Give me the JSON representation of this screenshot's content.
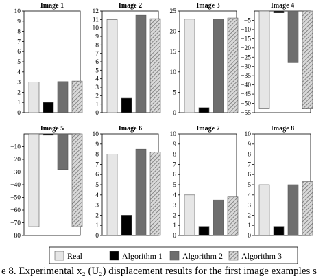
{
  "chart_data": [
    {
      "type": "bar",
      "title": "Image 1",
      "categories": [
        "Real",
        "Algorithm 1",
        "Algorithm 2",
        "Algorithm 3"
      ],
      "values": [
        3,
        1,
        3.05,
        3.1
      ],
      "ylim": [
        0,
        10
      ],
      "ticks": [
        0,
        1,
        2,
        3,
        4,
        5,
        6,
        7,
        8,
        9,
        10
      ]
    },
    {
      "type": "bar",
      "title": "Image 2",
      "categories": [
        "Real",
        "Algorithm 1",
        "Algorithm 2",
        "Algorithm 3"
      ],
      "values": [
        11,
        1.7,
        11.5,
        11.1
      ],
      "ylim": [
        0,
        12
      ],
      "ticks": [
        0,
        1,
        2,
        3,
        4,
        5,
        6,
        7,
        8,
        9,
        10,
        11,
        12
      ]
    },
    {
      "type": "bar",
      "title": "Image 3",
      "categories": [
        "Real",
        "Algorithm 1",
        "Algorithm 2",
        "Algorithm 3"
      ],
      "values": [
        23,
        1.2,
        23,
        23.3
      ],
      "ylim": [
        0,
        25
      ],
      "ticks": [
        0,
        5,
        10,
        15,
        20,
        25
      ]
    },
    {
      "type": "bar",
      "title": "Image 4",
      "categories": [
        "Real",
        "Algorithm 1",
        "Algorithm 2",
        "Algorithm 3"
      ],
      "values": [
        -53,
        -1,
        -28,
        -53
      ],
      "ylim": [
        -55,
        0
      ],
      "ticks": [
        -5,
        -10,
        -15,
        -20,
        -25,
        -30,
        -35,
        -40,
        -45,
        -50,
        -55
      ]
    },
    {
      "type": "bar",
      "title": "Image 5",
      "categories": [
        "Real",
        "Algorithm 1",
        "Algorithm 2",
        "Algorithm 3"
      ],
      "values": [
        -73,
        -1,
        -28,
        -73
      ],
      "ylim": [
        -80,
        0
      ],
      "ticks": [
        -10,
        -20,
        -30,
        -40,
        -50,
        -60,
        -70,
        -80
      ]
    },
    {
      "type": "bar",
      "title": "Image 6",
      "categories": [
        "Real",
        "Algorithm 1",
        "Algorithm 2",
        "Algorithm 3"
      ],
      "values": [
        8,
        2,
        8.5,
        8.2
      ],
      "ylim": [
        0,
        10
      ],
      "ticks": [
        0,
        1,
        2,
        3,
        4,
        5,
        6,
        7,
        8,
        9,
        10
      ]
    },
    {
      "type": "bar",
      "title": "Image 7",
      "categories": [
        "Real",
        "Algorithm 1",
        "Algorithm 2",
        "Algorithm 3"
      ],
      "values": [
        4,
        0.9,
        3.5,
        3.8
      ],
      "ylim": [
        0,
        10
      ],
      "ticks": [
        0,
        1,
        2,
        3,
        4,
        5,
        6,
        7,
        8,
        9,
        10
      ]
    },
    {
      "type": "bar",
      "title": "Image 8",
      "categories": [
        "Real",
        "Algorithm 1",
        "Algorithm 2",
        "Algorithm 3"
      ],
      "values": [
        5,
        0.9,
        5,
        5.3
      ],
      "ylim": [
        0,
        10
      ],
      "ticks": [
        0,
        1,
        2,
        3,
        4,
        5,
        6,
        7,
        8,
        9,
        10
      ]
    }
  ],
  "legend": [
    {
      "label": "Real",
      "color": "#e6e6e6",
      "pattern": "solid"
    },
    {
      "label": "Algorithm 1",
      "color": "#000000",
      "pattern": "solid"
    },
    {
      "label": "Algorithm 2",
      "color": "#6e6e6e",
      "pattern": "solid"
    },
    {
      "label": "Algorithm 3",
      "color": "#bdbdbd",
      "pattern": "hatch"
    }
  ],
  "caption": "e 8. Experimental x₂ (U₂) displacement results for the first image examples s"
}
